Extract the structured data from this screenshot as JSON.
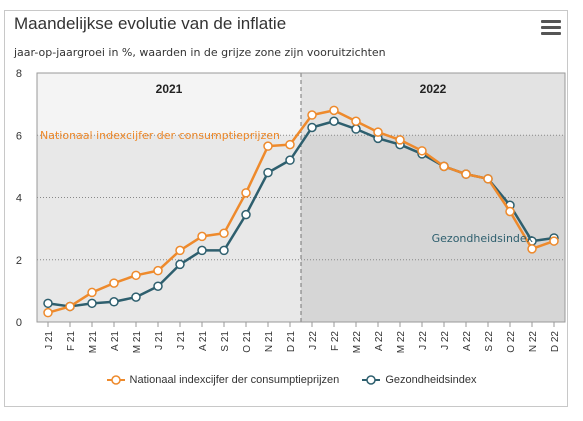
{
  "title": "Maandelijkse evolutie van de inflatie",
  "subtitle": "jaar-op-jaargroei in %, waarden in de grijze zone zijn vooruitzichten",
  "menu_icon": "hamburger-menu-icon",
  "chart_data": {
    "type": "line",
    "categories": [
      "J 21",
      "F 21",
      "M 21",
      "A 21",
      "M 21",
      "J 21",
      "J 21",
      "A 21",
      "S 21",
      "O 21",
      "N 21",
      "D 21",
      "J 22",
      "F 22",
      "M 22",
      "A 22",
      "M 22",
      "J 22",
      "J 22",
      "A 22",
      "S 22",
      "O 22",
      "N 22",
      "D 22"
    ],
    "ylim": [
      0,
      8
    ],
    "yticks": [
      0,
      2,
      4,
      6,
      8
    ],
    "grid": true,
    "legend_position": "bottom",
    "periods": [
      {
        "label": "2021",
        "start": 0,
        "end": 11
      },
      {
        "label": "2022",
        "start": 12,
        "end": 23
      }
    ],
    "forecast_start_index": 12,
    "series": [
      {
        "name": "Nationaal indexcijfer der consumptieprijzen",
        "color": "#ee8a2c",
        "label": "Nationaal indexcijfer der consumptieprijzen",
        "values": [
          0.3,
          0.5,
          0.95,
          1.25,
          1.5,
          1.65,
          2.3,
          2.75,
          2.85,
          4.15,
          5.65,
          5.7,
          6.65,
          6.8,
          6.45,
          6.1,
          5.85,
          5.5,
          5.0,
          4.75,
          4.6,
          3.55,
          2.35,
          2.6
        ]
      },
      {
        "name": "Gezondheidsindex",
        "color": "#2e5f6e",
        "label": "Gezondheidsindex",
        "values": [
          0.6,
          0.5,
          0.6,
          0.65,
          0.8,
          1.15,
          1.85,
          2.3,
          2.3,
          3.45,
          4.8,
          5.2,
          6.25,
          6.45,
          6.2,
          5.9,
          5.7,
          5.4,
          5.0,
          4.75,
          4.6,
          3.75,
          2.6,
          2.7
        ]
      }
    ]
  }
}
